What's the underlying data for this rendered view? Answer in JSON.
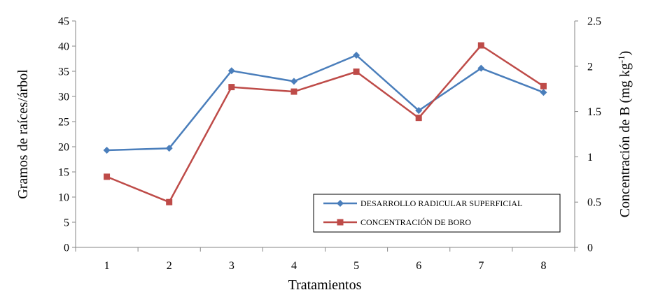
{
  "chart_data": {
    "type": "line",
    "title": "",
    "xlabel": "Tratamientos",
    "ylabel": "Gramos de raíces/árbol",
    "y2label_main": "Concentración de B (mg kg",
    "y2label_sup": "-1",
    "y2label_end": ")",
    "categories": [
      "1",
      "2",
      "3",
      "4",
      "5",
      "6",
      "7",
      "8"
    ],
    "ylim": [
      0,
      45
    ],
    "yticks": [
      "0",
      "5",
      "10",
      "15",
      "20",
      "25",
      "30",
      "35",
      "40",
      "45"
    ],
    "y2lim": [
      0,
      2.5
    ],
    "y2ticks": [
      "0",
      "0.5",
      "1",
      "1.5",
      "2",
      "2.5"
    ],
    "grid": false,
    "legend_position": "bottom-right",
    "series": [
      {
        "name": "DESARROLLO RADICULAR SUPERFICIAL",
        "axis": "left",
        "color": "#4A7EBB",
        "marker": "diamond",
        "values": [
          19.3,
          19.7,
          35.1,
          33.0,
          38.2,
          27.2,
          35.6,
          30.8
        ]
      },
      {
        "name": "CONCENTRACIÓN DE BORO",
        "axis": "right",
        "color": "#BE4B48",
        "marker": "square",
        "values": [
          0.78,
          0.5,
          1.77,
          1.72,
          1.94,
          1.43,
          2.23,
          1.78
        ]
      }
    ]
  }
}
